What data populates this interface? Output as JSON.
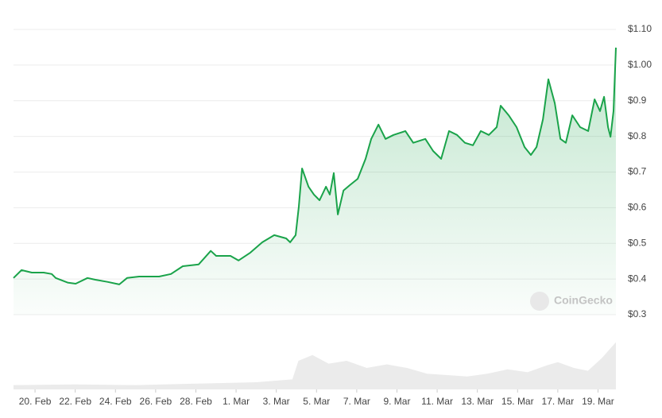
{
  "chart_data": {
    "type": "line",
    "color": "#1aa34a",
    "grid": true,
    "watermark": "CoinGecko",
    "xlim": [
      -1.07,
      28.89
    ],
    "ylim": [
      0.3,
      1.1
    ],
    "yticks": [
      {
        "value": 0.3,
        "label": "$0.3"
      },
      {
        "value": 0.4,
        "label": "$0.4"
      },
      {
        "value": 0.5,
        "label": "$0.5"
      },
      {
        "value": 0.6,
        "label": "$0.6"
      },
      {
        "value": 0.7,
        "label": "$0.7"
      },
      {
        "value": 0.8,
        "label": "$0.8"
      },
      {
        "value": 0.9,
        "label": "$0.9"
      },
      {
        "value": 1.0,
        "label": "$1.00"
      },
      {
        "value": 1.1,
        "label": "$1.10"
      }
    ],
    "xticks": [
      {
        "value": 0,
        "label": "20. Feb"
      },
      {
        "value": 2,
        "label": "22. Feb"
      },
      {
        "value": 4,
        "label": "24. Feb"
      },
      {
        "value": 6,
        "label": "26. Feb"
      },
      {
        "value": 8,
        "label": "28. Feb"
      },
      {
        "value": 10,
        "label": "1. Mar"
      },
      {
        "value": 12,
        "label": "3. Mar"
      },
      {
        "value": 14,
        "label": "5. Mar"
      },
      {
        "value": 16,
        "label": "7. Mar"
      },
      {
        "value": 18,
        "label": "9. Mar"
      },
      {
        "value": 20,
        "label": "11. Mar"
      },
      {
        "value": 22,
        "label": "13. Mar"
      },
      {
        "value": 24,
        "label": "15. Mar"
      },
      {
        "value": 26,
        "label": "17. Mar"
      },
      {
        "value": 28,
        "label": "19. Mar"
      }
    ],
    "x": [
      -1.07,
      -0.67,
      -0.16,
      0.43,
      0.83,
      1.03,
      1.62,
      2.02,
      2.61,
      3.0,
      3.6,
      4.19,
      4.58,
      5.18,
      6.17,
      6.76,
      7.35,
      8.14,
      8.74,
      9.01,
      9.72,
      10.12,
      10.71,
      11.3,
      11.9,
      12.49,
      12.69,
      12.96,
      13.12,
      13.28,
      13.6,
      13.87,
      14.15,
      14.47,
      14.66,
      14.86,
      15.06,
      15.34,
      15.65,
      16.05,
      16.44,
      16.72,
      17.08,
      17.43,
      17.83,
      18.42,
      18.81,
      19.41,
      19.8,
      20.2,
      20.59,
      20.99,
      21.38,
      21.78,
      22.17,
      22.57,
      22.96,
      23.16,
      23.56,
      23.95,
      24.35,
      24.66,
      24.94,
      25.26,
      25.53,
      25.85,
      26.13,
      26.4,
      26.72,
      27.11,
      27.51,
      27.83,
      28.1,
      28.3,
      28.5,
      28.62,
      28.77,
      28.89
    ],
    "values": [
      0.403,
      0.425,
      0.418,
      0.418,
      0.414,
      0.403,
      0.39,
      0.387,
      0.403,
      0.398,
      0.392,
      0.385,
      0.403,
      0.407,
      0.407,
      0.414,
      0.436,
      0.441,
      0.479,
      0.465,
      0.465,
      0.452,
      0.474,
      0.503,
      0.523,
      0.514,
      0.503,
      0.523,
      0.603,
      0.71,
      0.659,
      0.637,
      0.621,
      0.659,
      0.637,
      0.697,
      0.581,
      0.648,
      0.663,
      0.681,
      0.737,
      0.793,
      0.833,
      0.793,
      0.804,
      0.815,
      0.782,
      0.793,
      0.759,
      0.737,
      0.815,
      0.804,
      0.782,
      0.775,
      0.815,
      0.804,
      0.826,
      0.886,
      0.859,
      0.826,
      0.77,
      0.748,
      0.77,
      0.848,
      0.96,
      0.893,
      0.793,
      0.782,
      0.859,
      0.826,
      0.815,
      0.904,
      0.871,
      0.911,
      0.826,
      0.799,
      0.871,
      1.049
    ],
    "volume": {
      "ylim": [
        0,
        100
      ],
      "x": [
        -1.07,
        2,
        5,
        8,
        11,
        12.8,
        13.1,
        13.8,
        14.6,
        15.5,
        16.5,
        17.5,
        18.5,
        19.5,
        20.5,
        21.5,
        22.5,
        23.5,
        24.5,
        25.5,
        26,
        26.8,
        27.5,
        28.2,
        28.89
      ],
      "values": [
        6,
        7,
        6,
        8,
        10,
        14,
        40,
        48,
        36,
        40,
        30,
        35,
        30,
        22,
        20,
        18,
        22,
        28,
        24,
        34,
        38,
        30,
        26,
        44,
        66
      ]
    }
  }
}
